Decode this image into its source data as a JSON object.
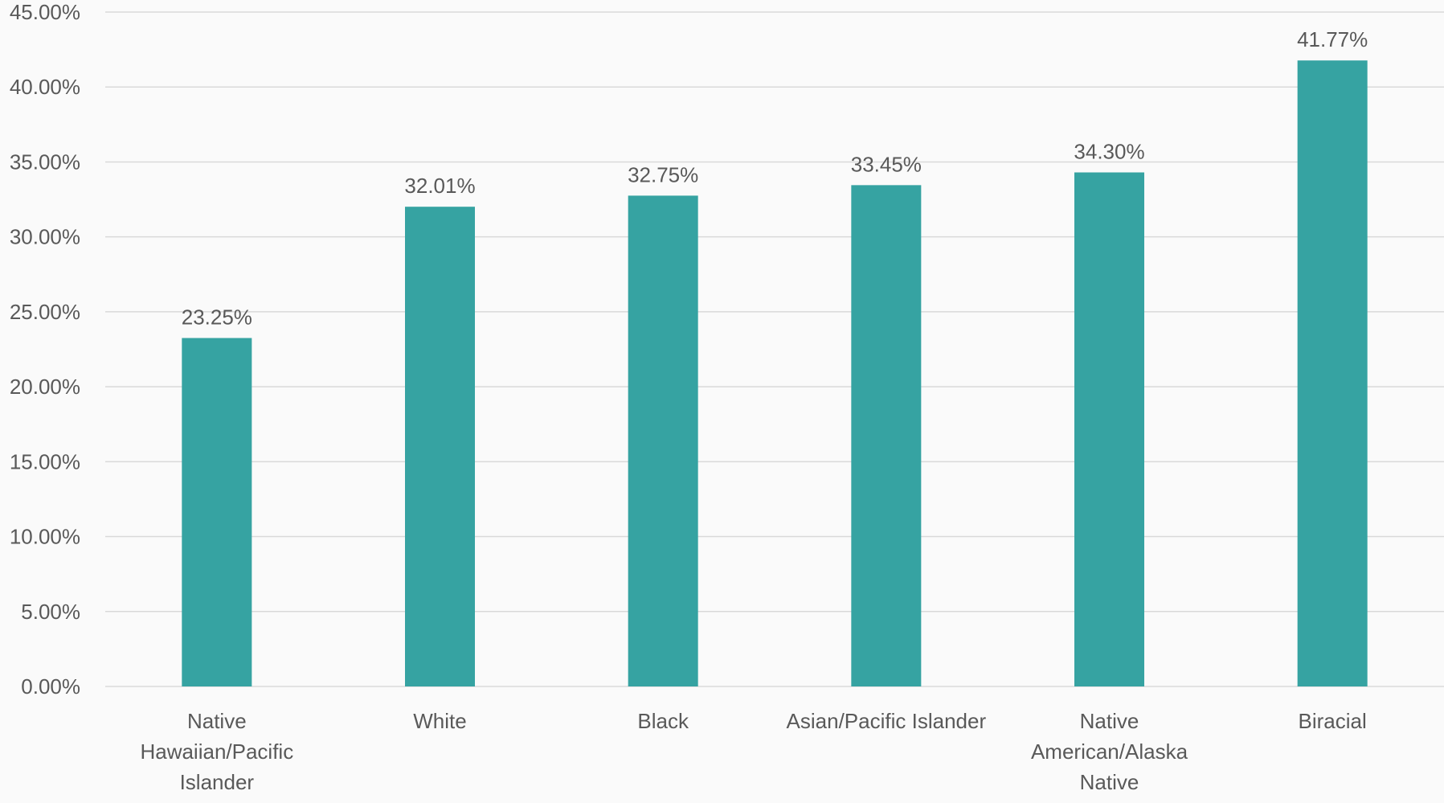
{
  "chart_data": {
    "type": "bar",
    "title": "",
    "xlabel": "",
    "ylabel": "",
    "categories": [
      "Native Hawaiian/Pacific Islander",
      "White",
      "Black",
      "Asian/Pacific Islander",
      "Native American/Alaska Native",
      "Biracial"
    ],
    "category_lines": [
      [
        "Native",
        "Hawaiian/Pacific",
        "Islander"
      ],
      [
        "White"
      ],
      [
        "Black"
      ],
      [
        "Asian/Pacific Islander"
      ],
      [
        "Native",
        "American/Alaska",
        "Native"
      ],
      [
        "Biracial"
      ]
    ],
    "values": [
      23.25,
      32.01,
      32.75,
      33.45,
      34.3,
      41.77
    ],
    "data_labels": [
      "23.25%",
      "32.01%",
      "32.75%",
      "33.45%",
      "34.30%",
      "41.77%"
    ],
    "ylim": [
      0,
      45
    ],
    "y_ticks": [
      0,
      5,
      10,
      15,
      20,
      25,
      30,
      35,
      40,
      45
    ],
    "y_tick_labels": [
      "0.00%",
      "5.00%",
      "10.00%",
      "15.00%",
      "20.00%",
      "25.00%",
      "30.00%",
      "35.00%",
      "40.00%",
      "45.00%"
    ],
    "grid": true,
    "legend": "none",
    "colors": {
      "bar": "#36a3a2",
      "grid": "#d9d9d9",
      "text": "#595959"
    }
  }
}
